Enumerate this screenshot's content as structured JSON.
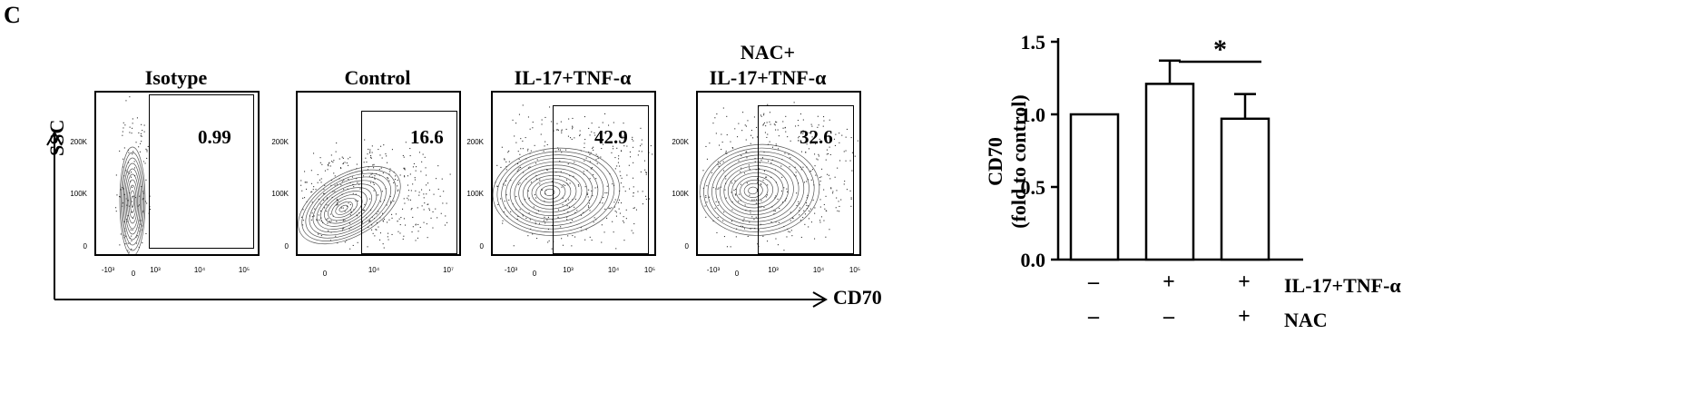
{
  "panel_letter": "C",
  "flow": {
    "y_axis_label": "SSC",
    "x_axis_label": "CD70",
    "y_ticks": [
      "200K",
      "100K",
      "0"
    ],
    "x_ticks_a": [
      "-10³",
      "0",
      "10³",
      "10⁴",
      "10⁵"
    ],
    "x_ticks_b": [
      "0",
      "10⁴",
      "10⁷"
    ],
    "plots": [
      {
        "title_line1": "",
        "title_line2": "Isotype",
        "gate_value": "0.99"
      },
      {
        "title_line1": "",
        "title_line2": "Control",
        "gate_value": "16.6"
      },
      {
        "title_line1": "",
        "title_line2": "IL-17+TNF-α",
        "gate_value": "42.9"
      },
      {
        "title_line1": "NAC+",
        "title_line2": "IL-17+TNF-α",
        "gate_value": "32.6"
      }
    ]
  },
  "chart_data": {
    "type": "bar",
    "ylabel_line1": "CD70",
    "ylabel_line2": "(fold to control)",
    "ylim": [
      0,
      1.5
    ],
    "yticks": [
      "1.5",
      "1.0",
      "0.5",
      "0.0"
    ],
    "values": [
      1.0,
      1.21,
      0.97
    ],
    "errors": [
      0.0,
      0.16,
      0.17
    ],
    "significance": "*",
    "conditions": [
      {
        "name": "IL-17+TNF-α",
        "signs": [
          "–",
          "+",
          "+"
        ]
      },
      {
        "name": "NAC",
        "signs": [
          "–",
          "–",
          "+"
        ]
      }
    ]
  }
}
